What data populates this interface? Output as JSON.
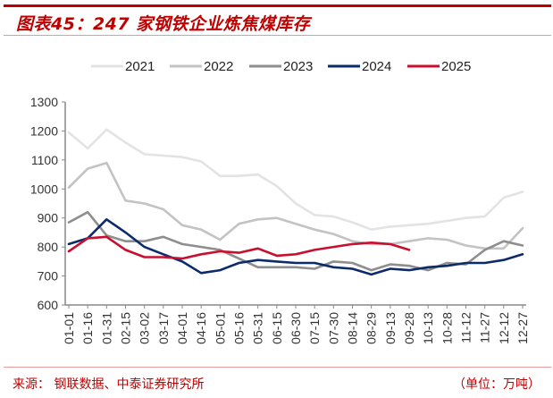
{
  "header": {
    "title": "图表45：247 家钢铁企业炼焦煤库存"
  },
  "footer": {
    "source": "来源：  钢联数据、中泰证券研究所",
    "unit": "（单位：万吨）"
  },
  "chart_data": {
    "type": "line",
    "title": "247 家钢铁企业炼焦煤库存",
    "xlabel": "",
    "ylabel": "万吨",
    "ylim": [
      600,
      1300
    ],
    "yticks": [
      600,
      700,
      800,
      900,
      1000,
      1100,
      1200,
      1300
    ],
    "grid": false,
    "legend_position": "top",
    "x": [
      "01-01",
      "01-16",
      "01-31",
      "02-15",
      "03-02",
      "03-17",
      "04-01",
      "04-16",
      "05-01",
      "05-16",
      "05-31",
      "06-15",
      "06-30",
      "07-15",
      "07-30",
      "08-14",
      "08-29",
      "09-13",
      "09-28",
      "10-13",
      "10-28",
      "11-12",
      "11-27",
      "12-12",
      "12-27"
    ],
    "series": [
      {
        "name": "2021",
        "color": "#e3e3e3",
        "values": [
          1195,
          1140,
          1205,
          1160,
          1120,
          1115,
          1110,
          1095,
          1045,
          1045,
          1050,
          1010,
          950,
          910,
          905,
          885,
          860,
          870,
          875,
          880,
          890,
          900,
          905,
          970,
          990
        ]
      },
      {
        "name": "2022",
        "color": "#c3c3c3",
        "values": [
          1005,
          1070,
          1090,
          960,
          950,
          930,
          875,
          860,
          825,
          880,
          895,
          900,
          880,
          860,
          845,
          820,
          810,
          810,
          820,
          830,
          825,
          805,
          795,
          795,
          865
        ]
      },
      {
        "name": "2023",
        "color": "#8e8e8e",
        "values": [
          885,
          920,
          840,
          820,
          820,
          835,
          810,
          800,
          790,
          760,
          730,
          730,
          730,
          725,
          750,
          745,
          720,
          740,
          735,
          720,
          745,
          740,
          790,
          820,
          805
        ]
      },
      {
        "name": "2024",
        "color": "#0d2a6a",
        "values": [
          810,
          830,
          895,
          850,
          800,
          775,
          750,
          710,
          720,
          745,
          755,
          750,
          745,
          745,
          730,
          725,
          705,
          725,
          720,
          730,
          735,
          745,
          745,
          755,
          775
        ]
      },
      {
        "name": "2025",
        "color": "#c8102e",
        "values": [
          785,
          830,
          835,
          790,
          765,
          765,
          760,
          775,
          785,
          780,
          795,
          770,
          775,
          790,
          800,
          810,
          815,
          810,
          790,
          null,
          null,
          null,
          null,
          null,
          null
        ]
      }
    ]
  }
}
